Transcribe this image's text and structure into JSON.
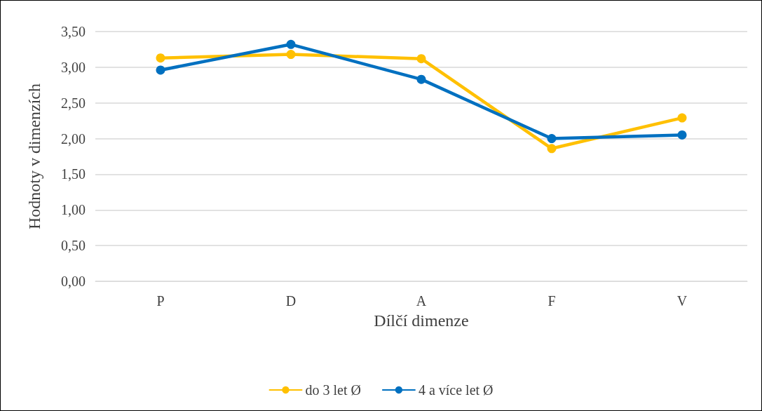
{
  "chart_data": {
    "type": "line",
    "xlabel": "Dílčí dimenze",
    "ylabel": "Hodnoty v dimenzích",
    "categories": [
      "P",
      "D",
      "A",
      "F",
      "V"
    ],
    "series": [
      {
        "name": "do 3 let Ø",
        "color": "#ffc000",
        "values": [
          3.13,
          3.18,
          3.12,
          1.86,
          2.29
        ]
      },
      {
        "name": "4 a více let Ø",
        "color": "#0070c0",
        "values": [
          2.96,
          3.32,
          2.83,
          2.0,
          2.05
        ]
      }
    ],
    "ylim": [
      0,
      3.5
    ],
    "yticks": [
      {
        "value": 0,
        "label": "0,00"
      },
      {
        "value": 0.5,
        "label": "0,50"
      },
      {
        "value": 1,
        "label": "1,00"
      },
      {
        "value": 1.5,
        "label": "1,50"
      },
      {
        "value": 2,
        "label": "2,00"
      },
      {
        "value": 2.5,
        "label": "2,50"
      },
      {
        "value": 3,
        "label": "3,00"
      },
      {
        "value": 3.5,
        "label": "3,50"
      }
    ],
    "grid": "y",
    "legend": "bottom",
    "marker": "circle",
    "line_style": "solid"
  }
}
